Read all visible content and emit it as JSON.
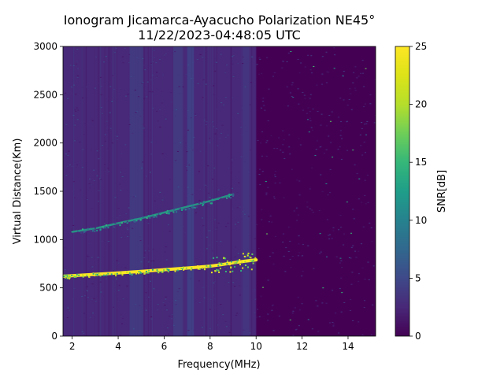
{
  "chart_data": {
    "type": "heatmap",
    "title_lines": [
      "Ionogram Jicamarca-Ayacucho Polarization NE45°",
      "11/22/2023-04:48:05 UTC"
    ],
    "xlabel": "Frequency(MHz)",
    "ylabel": "Virtual Distance(Km)",
    "xlim": [
      1.6,
      15.2
    ],
    "ylim": [
      0,
      3000
    ],
    "x_ticks": [
      2,
      4,
      6,
      8,
      10,
      12,
      14
    ],
    "x_tick_labels": [
      "2",
      "4",
      "6",
      "8",
      "10",
      "12",
      "14"
    ],
    "y_ticks": [
      0,
      500,
      1000,
      1500,
      2000,
      2500,
      3000
    ],
    "y_tick_labels": [
      "0",
      "500",
      "1000",
      "1500",
      "2000",
      "2500",
      "3000"
    ],
    "colorbar": {
      "label": "SNR[dB]",
      "range": [
        0,
        25
      ],
      "ticks": [
        0,
        5,
        10,
        15,
        20,
        25
      ],
      "tick_labels": [
        "0",
        "5",
        "10",
        "15",
        "20",
        "25"
      ],
      "colormap": "viridis"
    },
    "background_noise": {
      "high_noise_region_mhz": [
        1.6,
        10.0
      ],
      "high_noise_level_db": 2.5,
      "low_noise_level_db": 0.6
    },
    "interference_bands_mhz": [
      {
        "start": 4.5,
        "end": 5.1,
        "snr_db": 4
      },
      {
        "start": 6.4,
        "end": 6.8,
        "snr_db": 4
      },
      {
        "start": 7.0,
        "end": 7.3,
        "snr_db": 4.5
      },
      {
        "start": 9.4,
        "end": 9.7,
        "snr_db": 3.5
      }
    ],
    "traces": [
      {
        "trace": "first_hop_echo",
        "x": [
          1.6,
          2.0,
          3.0,
          4.0,
          5.0,
          6.0,
          7.0,
          8.0,
          8.5,
          9.0,
          9.5,
          10.0
        ],
        "y": [
          620,
          625,
          640,
          655,
          670,
          688,
          705,
          725,
          740,
          760,
          775,
          790
        ],
        "snr_db": 25
      },
      {
        "trace": "second_hop_echo",
        "x": [
          2.0,
          3.0,
          4.0,
          5.0,
          6.0,
          7.0,
          8.0,
          9.0
        ],
        "y": [
          1080,
          1115,
          1170,
          1220,
          1280,
          1340,
          1400,
          1470
        ],
        "snr_db": 15
      }
    ],
    "grid": false
  }
}
